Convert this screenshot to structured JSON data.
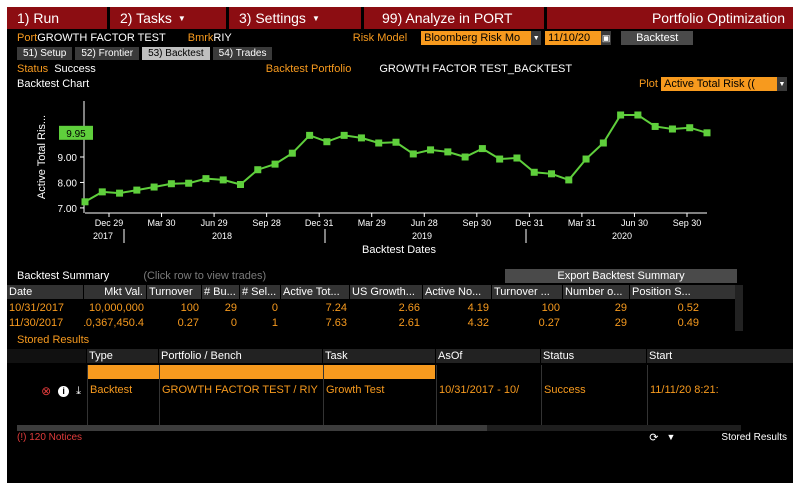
{
  "menu": {
    "run": "1) Run",
    "tasks": "2) Tasks",
    "settings": "3) Settings",
    "analyze": "99) Analyze in PORT",
    "title": "Portfolio Optimization"
  },
  "info": {
    "port_label": "Port",
    "port_value": "GROWTH FACTOR TEST",
    "bmrk_label": "Bmrk",
    "bmrk_value": "RIY",
    "risk_model_label": "Risk Model",
    "risk_model_value": "Bloomberg Risk Mo",
    "date_value": "11/10/20",
    "backtest_button": "Backtest"
  },
  "tabs": [
    {
      "label": "51) Setup",
      "active": false
    },
    {
      "label": "52) Frontier",
      "active": false
    },
    {
      "label": "53) Backtest",
      "active": true
    },
    {
      "label": "54) Trades",
      "active": false
    }
  ],
  "status": {
    "status_label": "Status",
    "status_value": "Success",
    "portfolio_label": "Backtest Portfolio",
    "portfolio_value": "GROWTH FACTOR TEST_BACKTEST",
    "chart_heading": "Backtest Chart",
    "plot_label": "Plot",
    "plot_value": "Active Total Risk (("
  },
  "chart_data": {
    "type": "line",
    "ylabel": "Active Total Ris...",
    "xlabel": "Backtest Dates",
    "ylim": [
      6.8,
      11.2
    ],
    "yticks": [
      "7.00",
      "8.00",
      "9.00"
    ],
    "current_label": "9.95",
    "current_value": 9.95,
    "line_color": "#5fcf3c",
    "x_ticks": [
      "Dec 29",
      "Mar 30",
      "Jun 29",
      "Sep 28",
      "Dec 31",
      "Mar 29",
      "Jun 28",
      "Sep 30",
      "Dec 31",
      "Mar 31",
      "Jun 30",
      "Sep 30"
    ],
    "years": [
      "2017",
      "2018",
      "2019",
      "2020"
    ],
    "values": [
      7.24,
      7.63,
      7.58,
      7.7,
      7.82,
      7.95,
      7.97,
      8.15,
      8.1,
      7.92,
      8.5,
      8.72,
      9.15,
      9.85,
      9.6,
      9.85,
      9.75,
      9.55,
      9.58,
      9.12,
      9.28,
      9.2,
      9.0,
      9.33,
      8.92,
      8.96,
      8.4,
      8.34,
      8.1,
      8.92,
      9.55,
      10.65,
      10.65,
      10.2,
      10.1,
      10.15,
      9.95
    ]
  },
  "summary": {
    "title": "Backtest Summary",
    "hint": "(Click row to view trades)",
    "export_button": "Export Backtest Summary",
    "columns": [
      "Date",
      "Mkt Val.",
      "Turnover",
      "# Bu...",
      "# Sel...",
      "Active Tot...",
      "US Growth...",
      "Active No...",
      "Turnover ...",
      "Number o...",
      "Position S..."
    ],
    "rows": [
      [
        "10/31/2017",
        "10,000,000",
        "100",
        "29",
        "0",
        "7.24",
        "2.66",
        "4.19",
        "100",
        "29",
        "0.52"
      ],
      [
        "11/30/2017",
        "10,367,450.4",
        "0.27",
        "0",
        "1",
        "7.63",
        "2.61",
        "4.32",
        "0.27",
        "29",
        "0.49"
      ]
    ]
  },
  "stored": {
    "title": "Stored Results",
    "columns": [
      "Type",
      "Portfolio / Bench",
      "Task",
      "AsOf",
      "Status",
      "Start"
    ],
    "row": [
      "Backtest",
      "GROWTH FACTOR TEST / RIY",
      "Growth Test",
      "10/31/2017 - 10/",
      "Success",
      "11/11/20 8:21:"
    ]
  },
  "footer": {
    "notices": "(!) 120 Notices",
    "stored_results": "Stored Results"
  }
}
